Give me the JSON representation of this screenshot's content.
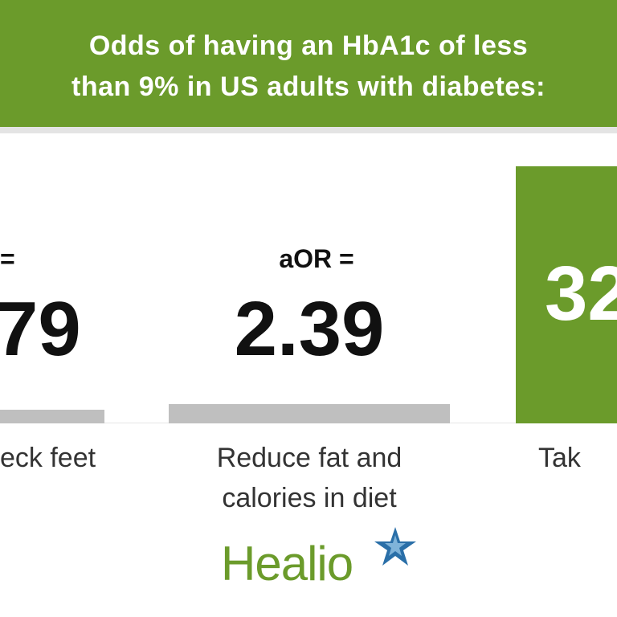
{
  "header": {
    "title_lines": [
      "Odds of having an HbA1c of less",
      "than 9% in US adults with diabetes:"
    ]
  },
  "columns": [
    {
      "label": "=",
      "value": "79",
      "caption_lines": [
        "eck feet"
      ]
    },
    {
      "label": "aOR =",
      "value": "2.39",
      "caption_lines": [
        "Reduce fat and",
        "calories in diet"
      ]
    },
    {
      "value": "32",
      "caption_lines": [
        "Tak"
      ]
    }
  ],
  "logo": "Healio"
}
